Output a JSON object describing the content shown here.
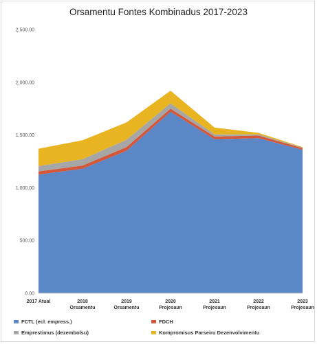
{
  "chart_data": {
    "type": "area",
    "stacked": true,
    "title": "Orsamentu Fontes Kombinadus 2017-2023",
    "xlabel": "",
    "ylabel": "",
    "ylim": [
      0,
      2500
    ],
    "yticks": [
      "0.00",
      "500.00",
      "1,000.00",
      "1,500.00",
      "2,000.00",
      "2,500.00"
    ],
    "grid": false,
    "legend_position": "bottom",
    "categories": [
      [
        "2017 Atual"
      ],
      [
        "2018",
        "Orsamentu"
      ],
      [
        "2019",
        "Orsamentu"
      ],
      [
        "2020",
        "Projesaun"
      ],
      [
        "2021",
        "Projesaun"
      ],
      [
        "2022",
        "Projesaun"
      ],
      [
        "2023",
        "Projesaun"
      ]
    ],
    "series": [
      {
        "name": "FCTL (ecl. empress.)",
        "color": "#5b87c7",
        "values": [
          1125,
          1180,
          1350,
          1720,
          1460,
          1470,
          1360
        ]
      },
      {
        "name": "FDCH",
        "color": "#d4573a",
        "values": [
          30,
          30,
          35,
          30,
          25,
          25,
          15
        ]
      },
      {
        "name": "Emprestimus (dezembolsu)",
        "color": "#a6a6a6",
        "values": [
          50,
          60,
          70,
          50,
          20,
          10,
          5
        ]
      },
      {
        "name": "Kompromisus Parseiru Dezenvolvimentu",
        "color": "#e8b421",
        "values": [
          165,
          180,
          165,
          120,
          65,
          15,
          5
        ]
      }
    ]
  }
}
